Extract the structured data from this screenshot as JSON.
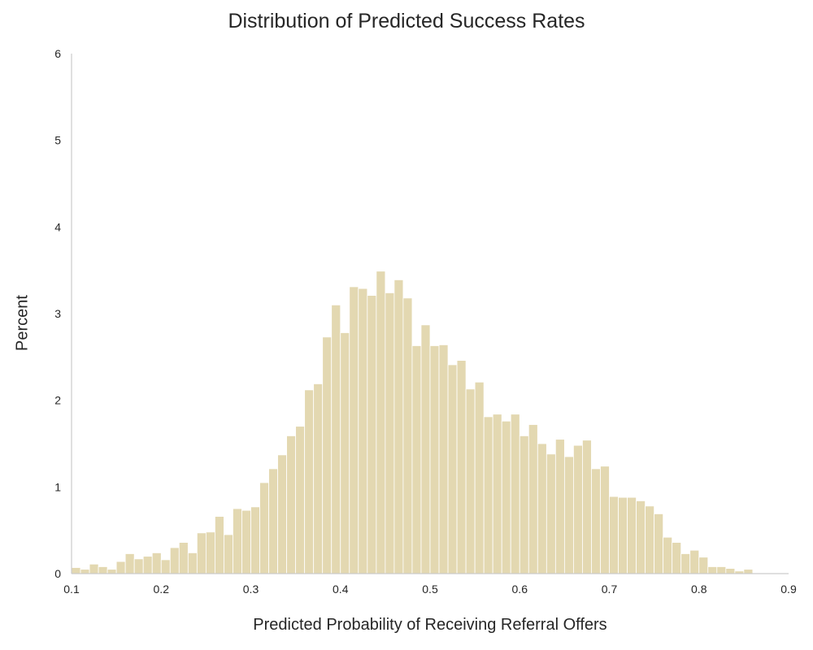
{
  "chart_data": {
    "type": "bar",
    "title": "Distribution of Predicted Success Rates",
    "xlabel": "Predicted Probability of Receiving Referral Offers",
    "ylabel": "Percent",
    "xlim": [
      0.1,
      0.9
    ],
    "ylim": [
      0,
      6
    ],
    "xticks": [
      "0.1",
      "0.2",
      "0.3",
      "0.4",
      "0.5",
      "0.6",
      "0.7",
      "0.8",
      "0.9"
    ],
    "yticks": [
      "0",
      "1",
      "2",
      "3",
      "4",
      "5",
      "6"
    ],
    "bin_start": 0.1,
    "bin_width": 0.01,
    "values": [
      0.07,
      0.05,
      0.11,
      0.08,
      0.05,
      0.14,
      0.23,
      0.17,
      0.2,
      0.24,
      0.16,
      0.3,
      0.36,
      0.24,
      0.47,
      0.48,
      0.66,
      0.45,
      0.75,
      0.73,
      0.77,
      1.05,
      1.21,
      1.37,
      1.59,
      1.7,
      2.12,
      2.19,
      2.73,
      3.1,
      2.78,
      3.31,
      3.29,
      3.21,
      3.49,
      3.24,
      3.39,
      3.18,
      2.63,
      2.87,
      2.63,
      2.64,
      2.41,
      2.46,
      2.13,
      2.21,
      1.81,
      1.84,
      1.76,
      1.84,
      1.59,
      1.72,
      1.5,
      1.38,
      1.55,
      1.35,
      1.48,
      1.54,
      1.21,
      1.24,
      0.89,
      0.88,
      0.88,
      0.84,
      0.78,
      0.69,
      0.42,
      0.36,
      0.23,
      0.27,
      0.19,
      0.08,
      0.08,
      0.06,
      0.03,
      0.05
    ],
    "grid": false,
    "bar_color": "#e3d8b1",
    "bar_edge_color": "#ffffff",
    "axis_color": "#cccccc"
  }
}
